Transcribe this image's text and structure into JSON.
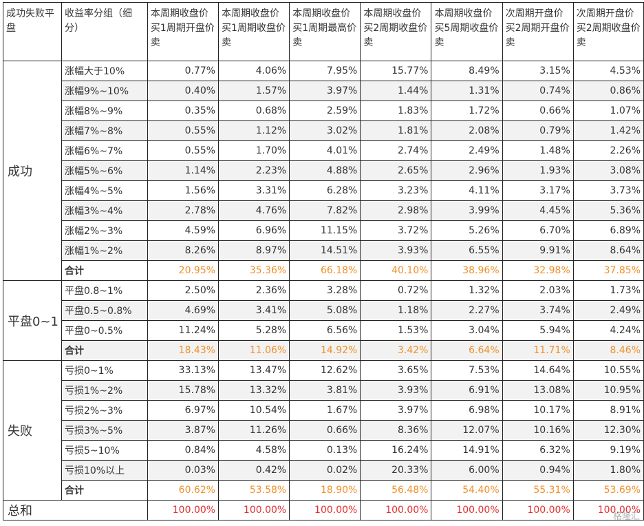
{
  "table": {
    "headers": [
      "成功失败平盘",
      "收益率分组（细分）",
      "本周期收盘价买1周期开盘价卖",
      "本周期收盘价买1周期收盘价卖",
      "本周期收盘价买1周期最高价卖",
      "本周期收盘价买2周期收盘价卖",
      "本周期收盘价买5周期收盘价卖",
      "次周期开盘价买2周期开盘价卖",
      "次周期开盘价买2周期收盘价卖"
    ],
    "groups": [
      {
        "label": "成功",
        "rows": [
          {
            "label": "涨幅大于10%",
            "values": [
              "0.77%",
              "4.06%",
              "7.95%",
              "15.77%",
              "8.49%",
              "3.15%",
              "4.53%"
            ]
          },
          {
            "label": "涨幅9%~10%",
            "values": [
              "0.40%",
              "1.57%",
              "3.97%",
              "1.44%",
              "1.31%",
              "0.74%",
              "0.86%"
            ]
          },
          {
            "label": "涨幅8%~9%",
            "values": [
              "0.35%",
              "0.68%",
              "2.59%",
              "1.83%",
              "1.72%",
              "0.66%",
              "1.07%"
            ]
          },
          {
            "label": "涨幅7%~8%",
            "values": [
              "0.55%",
              "1.12%",
              "3.02%",
              "1.81%",
              "2.08%",
              "0.79%",
              "1.42%"
            ]
          },
          {
            "label": "涨幅6%~7%",
            "values": [
              "0.55%",
              "1.70%",
              "4.01%",
              "2.74%",
              "2.49%",
              "1.48%",
              "2.26%"
            ]
          },
          {
            "label": "涨幅5%~6%",
            "values": [
              "1.14%",
              "2.23%",
              "4.88%",
              "2.65%",
              "2.96%",
              "1.93%",
              "3.08%"
            ]
          },
          {
            "label": "涨幅4%~5%",
            "values": [
              "1.56%",
              "3.31%",
              "6.28%",
              "3.23%",
              "4.11%",
              "3.17%",
              "3.73%"
            ]
          },
          {
            "label": "涨幅3%~4%",
            "values": [
              "2.78%",
              "4.76%",
              "7.82%",
              "2.98%",
              "3.99%",
              "4.45%",
              "5.36%"
            ]
          },
          {
            "label": "涨幅2%~3%",
            "values": [
              "4.59%",
              "6.96%",
              "11.15%",
              "3.72%",
              "5.26%",
              "6.70%",
              "6.89%"
            ]
          },
          {
            "label": "涨幅1%~2%",
            "values": [
              "8.26%",
              "8.97%",
              "14.51%",
              "3.93%",
              "6.55%",
              "9.91%",
              "8.64%"
            ]
          }
        ],
        "total": {
          "label": "合计",
          "values": [
            "20.95%",
            "35.36%",
            "66.18%",
            "40.10%",
            "38.96%",
            "32.98%",
            "37.85%"
          ]
        }
      },
      {
        "label": "平盘0~1",
        "rows": [
          {
            "label": "平盘0.8~1%",
            "values": [
              "2.50%",
              "2.36%",
              "3.28%",
              "0.72%",
              "1.32%",
              "2.03%",
              "1.73%"
            ]
          },
          {
            "label": "平盘0.5~0.8%",
            "values": [
              "4.69%",
              "3.41%",
              "5.08%",
              "1.18%",
              "2.27%",
              "3.74%",
              "2.49%"
            ]
          },
          {
            "label": "平盘0~0.5%",
            "values": [
              "11.24%",
              "5.28%",
              "6.56%",
              "1.53%",
              "3.04%",
              "5.94%",
              "4.24%"
            ]
          }
        ],
        "total": {
          "label": "合计",
          "values": [
            "18.43%",
            "11.06%",
            "14.92%",
            "3.42%",
            "6.64%",
            "11.71%",
            "8.46%"
          ]
        }
      },
      {
        "label": "失败",
        "rows": [
          {
            "label": "亏损0~1%",
            "values": [
              "33.13%",
              "13.47%",
              "12.62%",
              "3.65%",
              "7.53%",
              "14.64%",
              "10.55%"
            ]
          },
          {
            "label": "亏损1%~2%",
            "values": [
              "15.78%",
              "13.32%",
              "3.81%",
              "3.93%",
              "6.91%",
              "13.08%",
              "10.95%"
            ]
          },
          {
            "label": "亏损2%~3%",
            "values": [
              "6.97%",
              "10.54%",
              "1.67%",
              "3.97%",
              "6.98%",
              "10.17%",
              "8.91%"
            ]
          },
          {
            "label": "亏损3%~5%",
            "values": [
              "3.87%",
              "11.26%",
              "0.66%",
              "8.36%",
              "12.07%",
              "10.16%",
              "12.30%"
            ]
          },
          {
            "label": "亏损5~10%",
            "values": [
              "0.84%",
              "4.58%",
              "0.13%",
              "16.24%",
              "14.91%",
              "6.32%",
              "9.19%"
            ]
          },
          {
            "label": "亏损10%以上",
            "values": [
              "0.03%",
              "0.42%",
              "0.02%",
              "20.33%",
              "6.00%",
              "0.94%",
              "1.80%"
            ]
          }
        ],
        "total": {
          "label": "合计",
          "values": [
            "60.62%",
            "53.58%",
            "18.90%",
            "56.48%",
            "54.40%",
            "55.31%",
            "53.69%"
          ]
        }
      }
    ],
    "grand_total": {
      "label": "总和",
      "values": [
        "100.00%",
        "100.00%",
        "100.00%",
        "100.00%",
        "100.00%",
        "100.00%",
        "100.00%"
      ]
    }
  },
  "colors": {
    "subtotal_text": "#f0902a",
    "grand_total_text": "#e0302f",
    "row_shade": "#f2f2f2",
    "border": "#222222"
  },
  "watermark": "格隆汇"
}
